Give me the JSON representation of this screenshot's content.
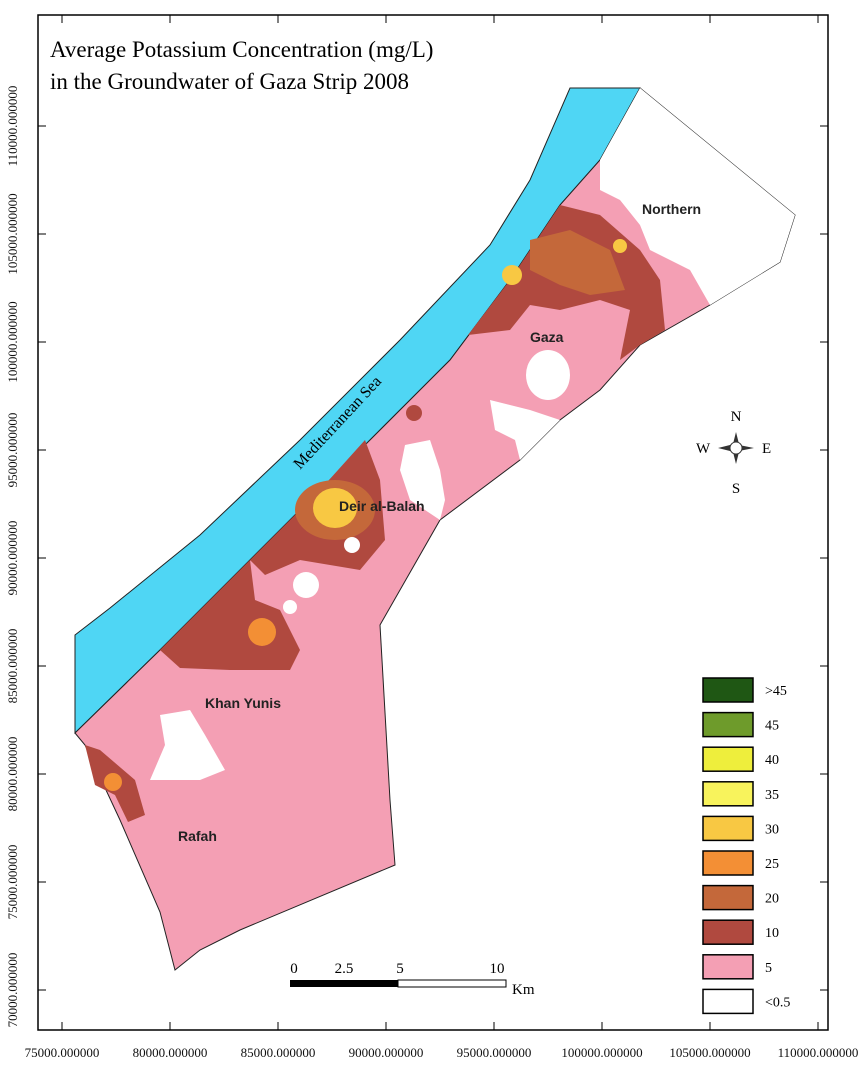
{
  "title": [
    "Average Potassium Concentration (mg/L)",
    "in the Groundwater of Gaza Strip 2008"
  ],
  "x_axis": {
    "ticks": [
      {
        "value": 75000,
        "label": "75000.000000"
      },
      {
        "value": 80000,
        "label": "80000.000000"
      },
      {
        "value": 85000,
        "label": "85000.000000"
      },
      {
        "value": 90000,
        "label": "90000.000000"
      },
      {
        "value": 95000,
        "label": "95000.000000"
      },
      {
        "value": 100000,
        "label": "100000.000000"
      },
      {
        "value": 105000,
        "label": "105000.000000"
      },
      {
        "value": 110000,
        "label": "110000.000000"
      }
    ]
  },
  "y_axis": {
    "ticks": [
      {
        "value": 70000,
        "label": "70000.000000"
      },
      {
        "value": 75000,
        "label": "75000.000000"
      },
      {
        "value": 80000,
        "label": "80000.000000"
      },
      {
        "value": 85000,
        "label": "85000.000000"
      },
      {
        "value": 90000,
        "label": "90000.000000"
      },
      {
        "value": 95000,
        "label": "95000.000000"
      },
      {
        "value": 100000,
        "label": "100000.000000"
      },
      {
        "value": 105000,
        "label": "105000.000000"
      },
      {
        "value": 110000,
        "label": "110000.000000"
      }
    ]
  },
  "places": {
    "sea": "Mediterranean Sea",
    "northern": "Northern",
    "gaza": "Gaza",
    "deir": "Deir al-Balah",
    "khan": "Khan Yunis",
    "rafah": "Rafah"
  },
  "compass": {
    "n": "N",
    "e": "E",
    "s": "S",
    "w": "W"
  },
  "scale_bar": {
    "labels": [
      "0",
      "2.5",
      "5",
      "10"
    ],
    "unit": "Km"
  },
  "legend": [
    {
      "label": ">45",
      "color": "#1f5714"
    },
    {
      "label": "45",
      "color": "#6e9b2b"
    },
    {
      "label": "40",
      "color": "#eeee3c"
    },
    {
      "label": "35",
      "color": "#f8f35c"
    },
    {
      "label": "30",
      "color": "#f8c843"
    },
    {
      "label": "25",
      "color": "#f38f35"
    },
    {
      "label": "20",
      "color": "#c4683a"
    },
    {
      "label": "10",
      "color": "#b0493f"
    },
    {
      "label": "5",
      "color": "#f49fb4"
    },
    {
      "label": "<0.5",
      "color": "#ffffff"
    }
  ]
}
